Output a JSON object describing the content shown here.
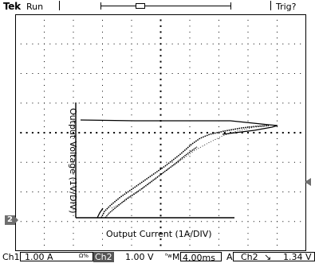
{
  "header": {
    "brand": "Tek",
    "acquisition_state": "Run",
    "trigger_state": "Trig?",
    "trigger_marker_letter": "T"
  },
  "markers": {
    "ch2_ground": "2"
  },
  "captions": {
    "x_label": "Output Current (1A/DIV)",
    "y_label": "Output Voltage (1V/DIV)"
  },
  "status": {
    "ch1_label": "Ch1",
    "ch1_scale": "1.00 A",
    "ch1_coupling": "Ω%",
    "ch2_label": "Ch2",
    "ch2_scale": "1.00 V",
    "bw_symbol": "ᴮw",
    "timebase_prefix": "M",
    "timebase": "4.00ms",
    "trigger_mode": "A",
    "trigger_source": "Ch2",
    "trigger_slope": "↘",
    "trigger_level": "1.34 V"
  },
  "colors": {
    "background": "#ffffff",
    "trace": "#000000",
    "grid": "#000000",
    "marker_gray": "#6e6e6e"
  }
}
